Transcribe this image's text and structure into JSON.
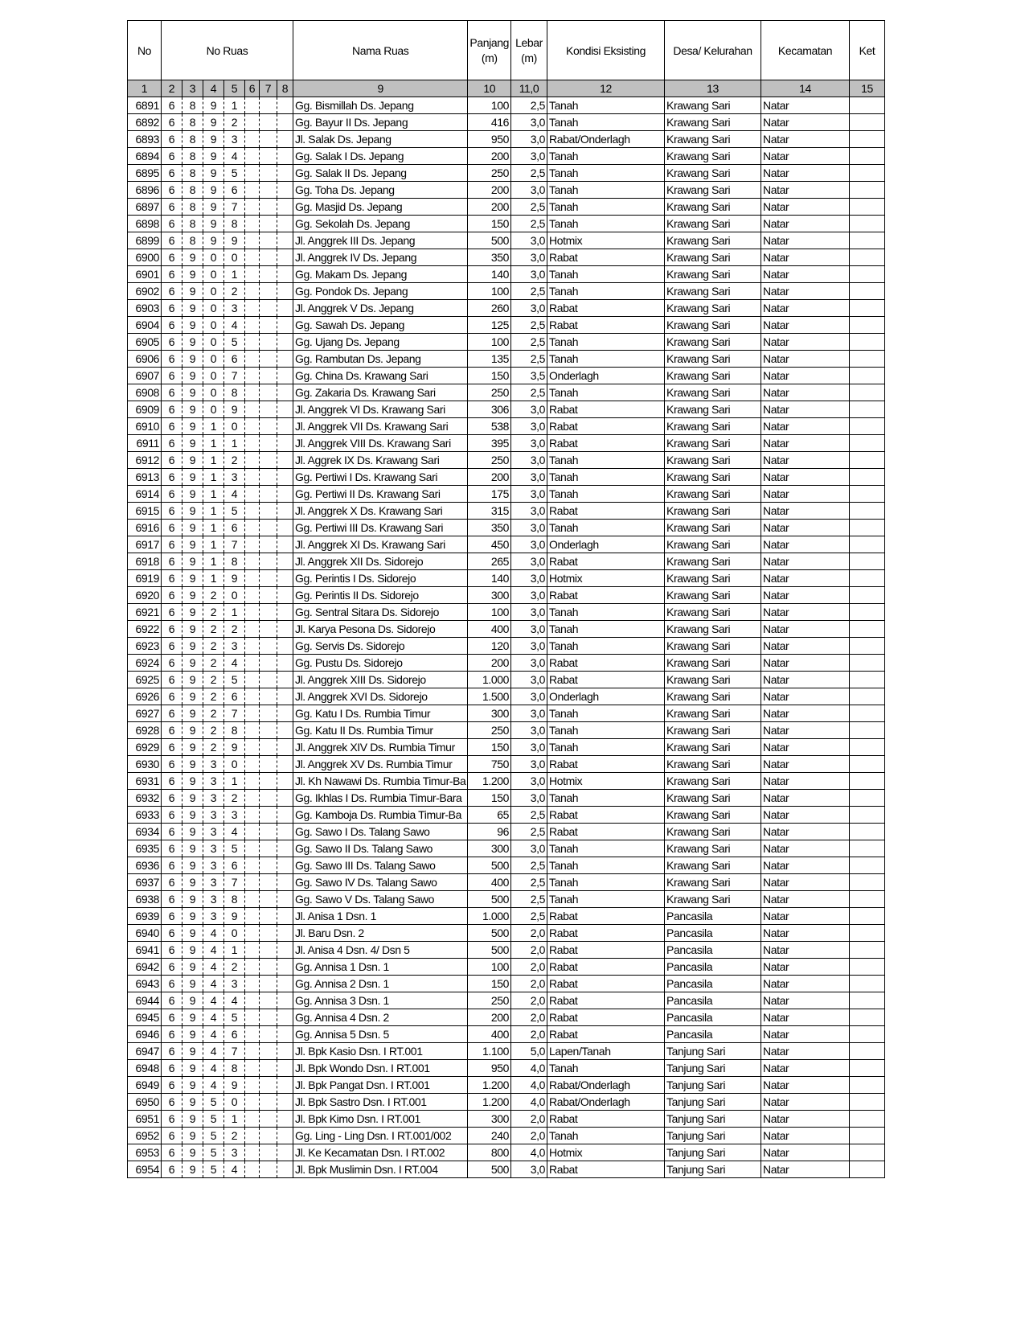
{
  "header": {
    "no": "No",
    "no_ruas": "No Ruas",
    "nama_ruas": "Nama Ruas",
    "panjang": "Panjang (m)",
    "lebar": "Lebar (m)",
    "kondisi": "Kondisi Eksisting",
    "desa": "Desa/ Kelurahan",
    "kecamatan": "Kecamatan",
    "ket": "Ket"
  },
  "column_numbers": [
    "1",
    "2",
    "3",
    "4",
    "5",
    "6",
    "7",
    "8",
    "9",
    "10",
    "11,0",
    "12",
    "13",
    "14",
    "15"
  ],
  "rows": [
    [
      "6891",
      "6891",
      "Gg. Bismillah  Ds. Jepang",
      "100",
      "2,5",
      "Tanah",
      "Krawang Sari",
      "Natar"
    ],
    [
      "6892",
      "6892",
      "Gg. Bayur II  Ds. Jepang",
      "416",
      "3,0",
      "Tanah",
      "Krawang Sari",
      "Natar"
    ],
    [
      "6893",
      "6893",
      "Jl. Salak  Ds. Jepang",
      "950",
      "3,0",
      "Rabat/Onderlagh",
      "Krawang Sari",
      "Natar"
    ],
    [
      "6894",
      "6894",
      "Gg. Salak I  Ds. Jepang",
      "200",
      "3,0",
      "Tanah",
      "Krawang Sari",
      "Natar"
    ],
    [
      "6895",
      "6895",
      "Gg. Salak II  Ds. Jepang",
      "250",
      "2,5",
      "Tanah",
      "Krawang Sari",
      "Natar"
    ],
    [
      "6896",
      "6896",
      "Gg. Toha  Ds. Jepang",
      "200",
      "3,0",
      "Tanah",
      "Krawang Sari",
      "Natar"
    ],
    [
      "6897",
      "6897",
      "Gg. Masjid  Ds. Jepang",
      "200",
      "2,5",
      "Tanah",
      "Krawang Sari",
      "Natar"
    ],
    [
      "6898",
      "6898",
      "Gg. Sekolah  Ds. Jepang",
      "150",
      "2,5",
      "Tanah",
      "Krawang Sari",
      "Natar"
    ],
    [
      "6899",
      "6899",
      "Jl. Anggrek III  Ds. Jepang",
      "500",
      "3,0",
      "Hotmix",
      "Krawang Sari",
      "Natar"
    ],
    [
      "6900",
      "6900",
      "Jl. Anggrek IV  Ds. Jepang",
      "350",
      "3,0",
      "Rabat",
      "Krawang Sari",
      "Natar"
    ],
    [
      "6901",
      "6901",
      "Gg. Makam  Ds. Jepang",
      "140",
      "3,0",
      "Tanah",
      "Krawang Sari",
      "Natar"
    ],
    [
      "6902",
      "6902",
      "Gg. Pondok  Ds. Jepang",
      "100",
      "2,5",
      "Tanah",
      "Krawang Sari",
      "Natar"
    ],
    [
      "6903",
      "6903",
      "Jl. Anggrek V  Ds. Jepang",
      "260",
      "3,0",
      "Rabat",
      "Krawang Sari",
      "Natar"
    ],
    [
      "6904",
      "6904",
      "Gg. Sawah  Ds. Jepang",
      "125",
      "2,5",
      "Rabat",
      "Krawang Sari",
      "Natar"
    ],
    [
      "6905",
      "6905",
      "Gg. Ujang  Ds. Jepang",
      "100",
      "2,5",
      "Tanah",
      "Krawang Sari",
      "Natar"
    ],
    [
      "6906",
      "6906",
      "Gg. Rambutan  Ds. Jepang",
      "135",
      "2,5",
      "Tanah",
      "Krawang Sari",
      "Natar"
    ],
    [
      "6907",
      "6907",
      "Gg. China  Ds. Krawang Sari",
      "150",
      "3,5",
      "Onderlagh",
      "Krawang Sari",
      "Natar"
    ],
    [
      "6908",
      "6908",
      "Gg. Zakaria  Ds. Krawang Sari",
      "250",
      "2,5",
      "Tanah",
      "Krawang Sari",
      "Natar"
    ],
    [
      "6909",
      "6909",
      "Jl. Anggrek VI  Ds. Krawang Sari",
      "306",
      "3,0",
      "Rabat",
      "Krawang Sari",
      "Natar"
    ],
    [
      "6910",
      "6910",
      "Jl. Anggrek VII  Ds. Krawang Sari",
      "538",
      "3,0",
      "Rabat",
      "Krawang Sari",
      "Natar"
    ],
    [
      "6911",
      "6911",
      "Jl. Anggrek VIII  Ds. Krawang Sari",
      "395",
      "3,0",
      "Rabat",
      "Krawang Sari",
      "Natar"
    ],
    [
      "6912",
      "6912",
      "Jl. Aggrek IX  Ds. Krawang Sari",
      "250",
      "3,0",
      "Tanah",
      "Krawang Sari",
      "Natar"
    ],
    [
      "6913",
      "6913",
      "Gg. Pertiwi I  Ds. Krawang Sari",
      "200",
      "3,0",
      "Tanah",
      "Krawang Sari",
      "Natar"
    ],
    [
      "6914",
      "6914",
      "Gg. Pertiwi II   Ds. Krawang Sari",
      "175",
      "3,0",
      "Tanah",
      "Krawang Sari",
      "Natar"
    ],
    [
      "6915",
      "6915",
      "Jl. Anggrek X  Ds. Krawang Sari",
      "315",
      "3,0",
      "Rabat",
      "Krawang Sari",
      "Natar"
    ],
    [
      "6916",
      "6916",
      "Gg. Pertiwi III  Ds. Krawang Sari",
      "350",
      "3,0",
      "Tanah",
      "Krawang Sari",
      "Natar"
    ],
    [
      "6917",
      "6917",
      "Jl. Anggrek XI  Ds. Krawang Sari",
      "450",
      "3,0",
      "Onderlagh",
      "Krawang Sari",
      "Natar"
    ],
    [
      "6918",
      "6918",
      "Jl. Anggrek XII  Ds. Sidorejo",
      "265",
      "3,0",
      "Rabat",
      "Krawang Sari",
      "Natar"
    ],
    [
      "6919",
      "6919",
      "Gg. Perintis I  Ds. Sidorejo",
      "140",
      "3,0",
      "Hotmix",
      "Krawang Sari",
      "Natar"
    ],
    [
      "6920",
      "6920",
      "Gg. Perintis II  Ds. Sidorejo",
      "300",
      "3,0",
      "Rabat",
      "Krawang Sari",
      "Natar"
    ],
    [
      "6921",
      "6921",
      "Gg. Sentral Sitara  Ds. Sidorejo",
      "100",
      "3,0",
      "Tanah",
      "Krawang Sari",
      "Natar"
    ],
    [
      "6922",
      "6922",
      "Jl. Karya Pesona  Ds. Sidorejo",
      "400",
      "3,0",
      "Tanah",
      "Krawang Sari",
      "Natar"
    ],
    [
      "6923",
      "6923",
      "Gg. Servis  Ds. Sidorejo",
      "120",
      "3,0",
      "Tanah",
      "Krawang Sari",
      "Natar"
    ],
    [
      "6924",
      "6924",
      "Gg. Pustu  Ds. Sidorejo",
      "200",
      "3,0",
      "Rabat",
      "Krawang Sari",
      "Natar"
    ],
    [
      "6925",
      "6925",
      "Jl. Anggrek XIII  Ds. Sidorejo",
      "1.000",
      "3,0",
      "Rabat",
      "Krawang Sari",
      "Natar"
    ],
    [
      "6926",
      "6926",
      "Jl. Anggrek XVI  Ds. Sidorejo",
      "1.500",
      "3,0",
      "Onderlagh",
      "Krawang Sari",
      "Natar"
    ],
    [
      "6927",
      "6927",
      "Gg. Katu I  Ds. Rumbia Timur",
      "300",
      "3,0",
      "Tanah",
      "Krawang Sari",
      "Natar"
    ],
    [
      "6928",
      "6928",
      "Gg. Katu II  Ds. Rumbia Timur",
      "250",
      "3,0",
      "Tanah",
      "Krawang Sari",
      "Natar"
    ],
    [
      "6929",
      "6929",
      "Jl. Anggrek XIV  Ds. Rumbia Timur",
      "150",
      "3,0",
      "Tanah",
      "Krawang Sari",
      "Natar"
    ],
    [
      "6930",
      "6930",
      "Jl. Anggrek XV  Ds. Rumbia Timur",
      "750",
      "3,0",
      "Rabat",
      "Krawang Sari",
      "Natar"
    ],
    [
      "6931",
      "6931",
      "Jl. Kh Nawawi  Ds. Rumbia Timur-Ba",
      "1.200",
      "3,0",
      "Hotmix",
      "Krawang Sari",
      "Natar"
    ],
    [
      "6932",
      "6932",
      "Gg. Ikhlas I  Ds. Rumbia Timur-Bara",
      "150",
      "3,0",
      "Tanah",
      "Krawang Sari",
      "Natar"
    ],
    [
      "6933",
      "6933",
      "Gg. Kamboja  Ds. Rumbia Timur-Ba",
      "65",
      "2,5",
      "Rabat",
      "Krawang Sari",
      "Natar"
    ],
    [
      "6934",
      "6934",
      "Gg. Sawo I  Ds. Talang Sawo",
      "96",
      "2,5",
      "Rabat",
      "Krawang Sari",
      "Natar"
    ],
    [
      "6935",
      "6935",
      "Gg. Sawo II  Ds. Talang Sawo",
      "300",
      "3,0",
      "Tanah",
      "Krawang Sari",
      "Natar"
    ],
    [
      "6936",
      "6936",
      "Gg. Sawo III  Ds. Talang Sawo",
      "500",
      "2,5",
      "Tanah",
      "Krawang Sari",
      "Natar"
    ],
    [
      "6937",
      "6937",
      "Gg. Sawo IV  Ds. Talang Sawo",
      "400",
      "2,5",
      "Tanah",
      "Krawang Sari",
      "Natar"
    ],
    [
      "6938",
      "6938",
      "Gg. Sawo V  Ds. Talang Sawo",
      "500",
      "2,5",
      "Tanah",
      "Krawang Sari",
      "Natar"
    ],
    [
      "6939",
      "6939",
      "Jl. Anisa 1  Dsn. 1",
      "1.000",
      "2,5",
      "Rabat",
      "Pancasila",
      "Natar"
    ],
    [
      "6940",
      "6940",
      "Jl. Baru  Dsn. 2",
      "500",
      "2,0",
      "Rabat",
      "Pancasila",
      "Natar"
    ],
    [
      "6941",
      "6941",
      "Jl. Anisa 4  Dsn. 4/ Dsn 5",
      "500",
      "2,0",
      "Rabat",
      "Pancasila",
      "Natar"
    ],
    [
      "6942",
      "6942",
      "Gg. Annisa 1  Dsn. 1",
      "100",
      "2,0",
      "Rabat",
      "Pancasila",
      "Natar"
    ],
    [
      "6943",
      "6943",
      "Gg. Annisa 2  Dsn. 1",
      "150",
      "2,0",
      "Rabat",
      "Pancasila",
      "Natar"
    ],
    [
      "6944",
      "6944",
      "Gg. Annisa 3  Dsn. 1",
      "250",
      "2,0",
      "Rabat",
      "Pancasila",
      "Natar"
    ],
    [
      "6945",
      "6945",
      "Gg. Annisa 4  Dsn. 2",
      "200",
      "2,0",
      "Rabat",
      "Pancasila",
      "Natar"
    ],
    [
      "6946",
      "6946",
      "Gg. Annisa 5  Dsn. 5",
      "400",
      "2,0",
      "Rabat",
      "Pancasila",
      "Natar"
    ],
    [
      "6947",
      "6947",
      "Jl. Bpk Kasio  Dsn. I RT.001",
      "1.100",
      "5,0",
      "Lapen/Tanah",
      "Tanjung Sari",
      "Natar"
    ],
    [
      "6948",
      "6948",
      "Jl. Bpk Wondo  Dsn. I RT.001",
      "950",
      "4,0",
      "Tanah",
      "Tanjung Sari",
      "Natar"
    ],
    [
      "6949",
      "6949",
      "Jl. Bpk Pangat  Dsn. I RT.001",
      "1.200",
      "4,0",
      "Rabat/Onderlagh",
      "Tanjung Sari",
      "Natar"
    ],
    [
      "6950",
      "6950",
      "Jl. Bpk Sastro  Dsn. I RT.001",
      "1.200",
      "4,0",
      "Rabat/Onderlagh",
      "Tanjung Sari",
      "Natar"
    ],
    [
      "6951",
      "6951",
      "Jl. Bpk Kimo  Dsn. I RT.001",
      "300",
      "2,0",
      "Rabat",
      "Tanjung Sari",
      "Natar"
    ],
    [
      "6952",
      "6952",
      "Gg. Ling - Ling  Dsn. I RT.001/002",
      "240",
      "2,0",
      "Tanah",
      "Tanjung Sari",
      "Natar"
    ],
    [
      "6953",
      "6953",
      "Jl. Ke Kecamatan  Dsn. I RT.002",
      "800",
      "4,0",
      "Hotmix",
      "Tanjung Sari",
      "Natar"
    ],
    [
      "6954",
      "6954",
      "Jl. Bpk Muslimin  Dsn. I RT.004",
      "500",
      "3,0",
      "Rabat",
      "Tanjung Sari",
      "Natar"
    ]
  ]
}
